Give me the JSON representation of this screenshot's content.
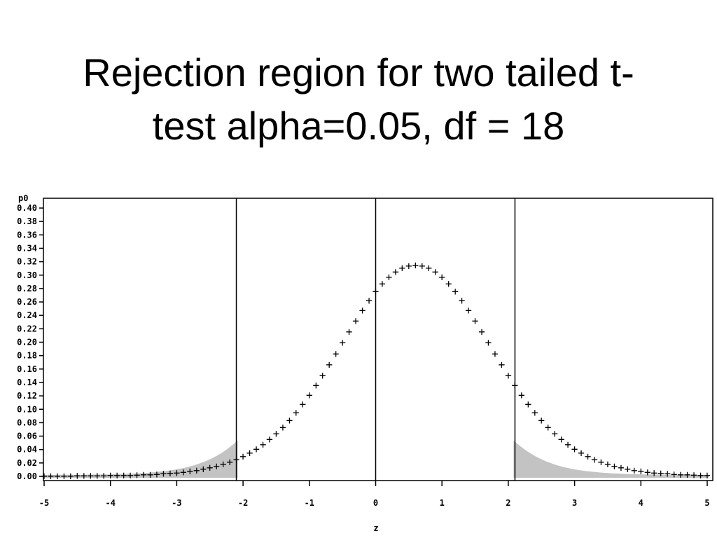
{
  "slide": {
    "title_line1": "Rejection region for two tailed t-",
    "title_line2": "test alpha=0.05, df = 18"
  },
  "chart_data": {
    "type": "scatter",
    "title": "Rejection region for two tailed t-test alpha=0.05, df = 18",
    "xlabel": "z",
    "ylabel": "p0",
    "xlim": [
      -5,
      5
    ],
    "ylim": [
      0,
      0.41
    ],
    "x_ticks": [
      -5,
      -4,
      -3,
      -2,
      -1,
      0,
      1,
      2,
      3,
      4,
      5
    ],
    "y_ticks": [
      0.0,
      0.02,
      0.04,
      0.06,
      0.08,
      0.1,
      0.12,
      0.14,
      0.16,
      0.18,
      0.2,
      0.22,
      0.24,
      0.26,
      0.28,
      0.3,
      0.32,
      0.34,
      0.36,
      0.38,
      0.4
    ],
    "y_tick_labels": [
      "0.00",
      "0.02",
      "0.04",
      "0.06",
      "0.08",
      "0.10",
      "0.12",
      "0.14",
      "0.16",
      "0.18",
      "0.20",
      "0.22",
      "0.24",
      "0.26",
      "0.28",
      "0.30",
      "0.32",
      "0.34",
      "0.36",
      "0.38",
      "0.40"
    ],
    "x_tick_labels": [
      "-5",
      "-4",
      "-3",
      "-2",
      "-1",
      "0",
      "1",
      "2",
      "3",
      "4",
      "5"
    ],
    "reference_lines_x": [
      -2.101,
      0,
      2.101
    ],
    "critical_value": 2.101,
    "df": 18,
    "series": [
      {
        "marker": "+",
        "x": [
          -5.0,
          -4.9,
          -4.8,
          -4.7,
          -4.6,
          -4.5,
          -4.4,
          -4.3,
          -4.2,
          -4.1,
          -4.0,
          -3.9,
          -3.8,
          -3.7,
          -3.6,
          -3.5,
          -3.4,
          -3.3,
          -3.2,
          -3.1,
          -3.0,
          -2.9,
          -2.8,
          -2.7,
          -2.6,
          -2.5,
          -2.4,
          -2.3,
          -2.2,
          -2.1,
          -2.0,
          -1.9,
          -1.8,
          -1.7,
          -1.6,
          -1.5,
          -1.4,
          -1.3,
          -1.2,
          -1.1,
          -1.0,
          -0.9,
          -0.8,
          -0.7,
          -0.6,
          -0.5,
          -0.4,
          -0.3,
          -0.2,
          -0.1,
          0.0,
          0.1,
          0.2,
          0.3,
          0.4,
          0.5,
          0.6,
          0.7,
          0.8,
          0.9,
          1.0,
          1.1,
          1.2,
          1.3,
          1.4,
          1.5,
          1.6,
          1.7,
          1.8,
          1.9,
          2.0,
          2.1,
          2.2,
          2.3,
          2.4,
          2.5,
          2.6,
          2.7,
          2.8,
          2.9,
          3.0,
          3.1,
          3.2,
          3.3,
          3.4,
          3.5,
          3.6,
          3.7,
          3.8,
          3.9,
          4.0,
          4.1,
          4.2,
          4.3,
          4.4,
          4.5,
          4.6,
          4.7,
          4.8,
          4.9,
          5.0
        ],
        "y": [
          0.0001,
          0.0001,
          0.0002,
          0.0002,
          0.0002,
          0.0003,
          0.0003,
          0.0004,
          0.0005,
          0.0006,
          0.0008,
          0.0009,
          0.0011,
          0.0013,
          0.0016,
          0.0019,
          0.0023,
          0.0028,
          0.0034,
          0.0041,
          0.0049,
          0.0059,
          0.0071,
          0.0086,
          0.0103,
          0.0123,
          0.0147,
          0.0175,
          0.0208,
          0.0247,
          0.0292,
          0.0344,
          0.0403,
          0.047,
          0.0546,
          0.0632,
          0.0727,
          0.0832,
          0.0947,
          0.1072,
          0.1206,
          0.135,
          0.1501,
          0.1659,
          0.1822,
          0.1987,
          0.2152,
          0.2314,
          0.247,
          0.2616,
          0.275,
          0.2867,
          0.2966,
          0.3045,
          0.3101,
          0.3135,
          0.3146,
          0.3135,
          0.3101,
          0.3045,
          0.2966,
          0.2867,
          0.275,
          0.2616,
          0.247,
          0.2314,
          0.2152,
          0.1987,
          0.1822,
          0.1659,
          0.1501,
          0.135,
          0.1206,
          0.1072,
          0.0947,
          0.0832,
          0.0727,
          0.0632,
          0.0546,
          0.047,
          0.0403,
          0.0344,
          0.0292,
          0.0247,
          0.0208,
          0.0175,
          0.0147,
          0.0123,
          0.0103,
          0.0086,
          0.0071,
          0.0059,
          0.0049,
          0.0041,
          0.0034,
          0.0028,
          0.0023,
          0.0019,
          0.0016,
          0.0013,
          0.0011
        ]
      }
    ],
    "shaded_regions": [
      {
        "from": -5,
        "to": -2.101,
        "color": "#c0c0c0"
      },
      {
        "from": 2.101,
        "to": 5,
        "color": "#c0c0c0"
      }
    ],
    "colors": {
      "marker": "#000000",
      "shade": "#c0c0c0",
      "axis": "#000000"
    }
  }
}
